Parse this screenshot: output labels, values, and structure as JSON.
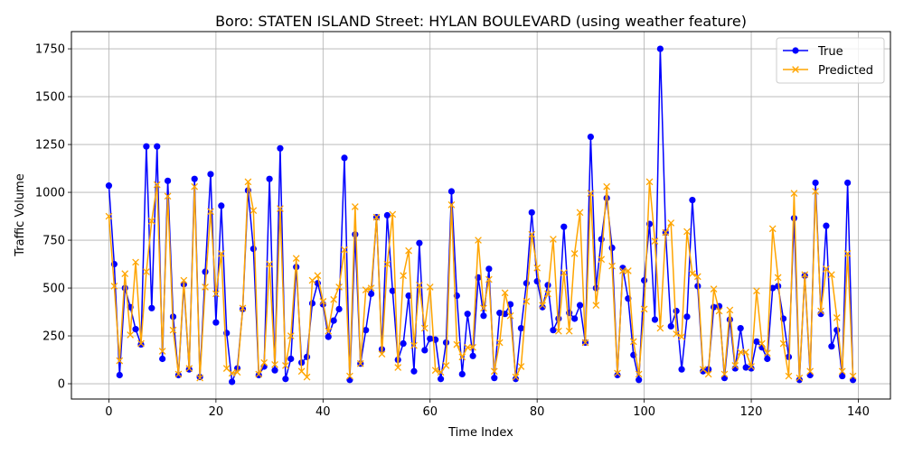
{
  "chart_data": {
    "type": "line",
    "title": "Boro: STATEN ISLAND Street: HYLAN BOULEVARD (using weather feature)",
    "xlabel": "Time Index",
    "ylabel": "Traffic Volume",
    "xlim": [
      -7,
      146
    ],
    "ylim": [
      -80,
      1840
    ],
    "x_ticks": [
      0,
      20,
      40,
      60,
      80,
      100,
      120,
      140
    ],
    "y_ticks": [
      0,
      250,
      500,
      750,
      1000,
      1250,
      1500,
      1750
    ],
    "grid": true,
    "legend_position": "top-right",
    "series": [
      {
        "name": "True",
        "color": "#0000ff",
        "marker": "circle",
        "values": [
          1035,
          625,
          45,
          500,
          400,
          285,
          205,
          1240,
          395,
          1240,
          130,
          1060,
          350,
          45,
          520,
          75,
          1070,
          35,
          585,
          1095,
          320,
          930,
          265,
          10,
          80,
          390,
          1010,
          705,
          45,
          90,
          1070,
          70,
          1230,
          25,
          130,
          610,
          110,
          140,
          420,
          525,
          415,
          245,
          330,
          390,
          1180,
          20,
          780,
          105,
          280,
          470,
          870,
          180,
          880,
          485,
          125,
          210,
          460,
          65,
          735,
          175,
          235,
          230,
          25,
          215,
          1005,
          460,
          50,
          365,
          145,
          555,
          355,
          600,
          30,
          370,
          365,
          415,
          25,
          290,
          525,
          895,
          535,
          400,
          515,
          280,
          340,
          820,
          370,
          340,
          410,
          215,
          1290,
          500,
          755,
          970,
          710,
          45,
          605,
          445,
          150,
          20,
          540,
          835,
          335,
          1750,
          790,
          300,
          380,
          75,
          350,
          960,
          510,
          65,
          75,
          400,
          405,
          30,
          335,
          80,
          290,
          85,
          80,
          220,
          190,
          130,
          500,
          510,
          340,
          140,
          865,
          20,
          565,
          45,
          1050,
          365,
          825,
          195,
          280,
          40,
          1050,
          20
        ]
      },
      {
        "name": "Predicted",
        "color": "#ffa500",
        "marker": "x",
        "values": [
          875,
          510,
          120,
          575,
          255,
          635,
          210,
          585,
          850,
          1040,
          170,
          980,
          280,
          50,
          540,
          80,
          1030,
          30,
          505,
          900,
          470,
          680,
          80,
          55,
          60,
          395,
          1055,
          905,
          50,
          110,
          625,
          100,
          915,
          95,
          250,
          655,
          65,
          35,
          540,
          565,
          430,
          275,
          440,
          505,
          700,
          40,
          925,
          105,
          490,
          500,
          870,
          155,
          625,
          885,
          85,
          565,
          695,
          200,
          515,
          290,
          505,
          70,
          60,
          95,
          935,
          205,
          140,
          190,
          190,
          750,
          395,
          545,
          65,
          215,
          475,
          355,
          35,
          90,
          430,
          780,
          605,
          410,
          470,
          755,
          275,
          580,
          275,
          680,
          895,
          215,
          995,
          410,
          650,
          1030,
          615,
          55,
          590,
          590,
          220,
          50,
          390,
          1055,
          745,
          290,
          790,
          840,
          260,
          245,
          795,
          575,
          560,
          75,
          50,
          495,
          380,
          50,
          385,
          95,
          165,
          165,
          90,
          485,
          210,
          160,
          810,
          555,
          210,
          40,
          995,
          30,
          570,
          65,
          1005,
          380,
          600,
          570,
          345,
          65,
          680,
          40
        ]
      }
    ]
  }
}
